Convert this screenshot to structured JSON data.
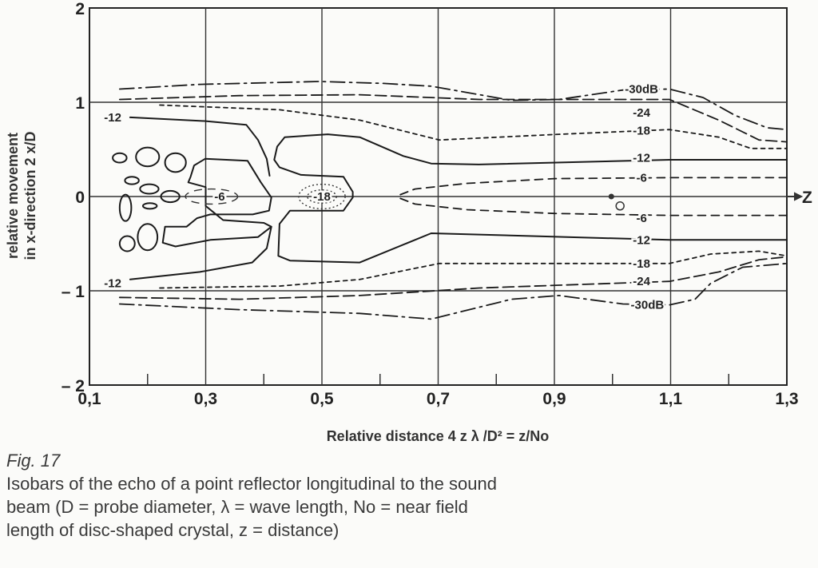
{
  "chart_data": {
    "type": "contour",
    "xlabel": "Relative distance 4 z λ /D² = z/No",
    "ylabel": [
      "relative movement",
      "in x-direction 2 x/D"
    ],
    "xlim": [
      0.1,
      1.3
    ],
    "ylim": [
      -2,
      2
    ],
    "x_ticks": [
      {
        "value": 0.1,
        "label": "0,1"
      },
      {
        "value": 0.3,
        "label": "0,3"
      },
      {
        "value": 0.5,
        "label": "0,5"
      },
      {
        "value": 0.7,
        "label": "0,7"
      },
      {
        "value": 0.9,
        "label": "0,9"
      },
      {
        "value": 1.1,
        "label": "1,1"
      },
      {
        "value": 1.3,
        "label": "1,3"
      }
    ],
    "x_minor_ticks": [
      0.2,
      0.4,
      0.6,
      0.8,
      1.0,
      1.2
    ],
    "y_ticks": [
      {
        "value": 2,
        "label": "2"
      },
      {
        "value": 1,
        "label": "1"
      },
      {
        "value": 0,
        "label": "0"
      },
      {
        "value": -1,
        "label": "– 1"
      },
      {
        "value": -2,
        "label": "– 2"
      }
    ],
    "grid": true,
    "axis_arrow_label": "Z",
    "contours": [
      {
        "level": -30,
        "style": "dashdot",
        "points": [
          [
            0.152,
            1.14
          ],
          [
            0.29,
            1.19
          ],
          [
            0.496,
            1.22
          ],
          [
            0.606,
            1.2
          ],
          [
            0.688,
            1.17
          ],
          [
            0.826,
            1.02
          ],
          [
            0.908,
            1.03
          ],
          [
            1.018,
            1.13
          ],
          [
            1.098,
            1.14
          ],
          [
            1.156,
            1.05
          ],
          [
            1.211,
            0.86
          ],
          [
            1.266,
            0.73
          ],
          [
            1.3,
            0.71
          ]
        ]
      },
      {
        "level": -30,
        "style": "dashdot",
        "points": [
          [
            0.152,
            -1.14
          ],
          [
            0.358,
            -1.2
          ],
          [
            0.565,
            -1.24
          ],
          [
            0.688,
            -1.3
          ],
          [
            0.826,
            -1.09
          ],
          [
            0.908,
            -1.05
          ],
          [
            1.018,
            -1.14
          ],
          [
            1.098,
            -1.15
          ],
          [
            1.142,
            -1.09
          ],
          [
            1.169,
            -0.92
          ],
          [
            1.224,
            -0.75
          ],
          [
            1.3,
            -0.71
          ]
        ]
      },
      {
        "level": -24,
        "style": "longdash",
        "points": [
          [
            0.152,
            1.03
          ],
          [
            0.358,
            1.07
          ],
          [
            0.565,
            1.08
          ],
          [
            0.771,
            1.03
          ],
          [
            1.098,
            1.03
          ],
          [
            1.183,
            0.81
          ],
          [
            1.252,
            0.6
          ],
          [
            1.3,
            0.58
          ]
        ]
      },
      {
        "level": -24,
        "style": "longdash",
        "points": [
          [
            0.152,
            -1.07
          ],
          [
            0.358,
            -1.09
          ],
          [
            0.565,
            -1.05
          ],
          [
            0.771,
            -0.97
          ],
          [
            1.098,
            -0.9
          ],
          [
            1.183,
            -0.8
          ],
          [
            1.252,
            -0.67
          ],
          [
            1.3,
            -0.64
          ]
        ]
      },
      {
        "level": -18,
        "style": "shortdash",
        "points": [
          [
            0.221,
            0.97
          ],
          [
            0.427,
            0.92
          ],
          [
            0.565,
            0.81
          ],
          [
            0.702,
            0.6
          ],
          [
            0.908,
            0.66
          ],
          [
            1.098,
            0.71
          ],
          [
            1.183,
            0.63
          ],
          [
            1.238,
            0.51
          ],
          [
            1.3,
            0.51
          ]
        ]
      },
      {
        "level": -18,
        "style": "shortdash",
        "points": [
          [
            0.221,
            -0.97
          ],
          [
            0.427,
            -0.95
          ],
          [
            0.565,
            -0.88
          ],
          [
            0.702,
            -0.71
          ],
          [
            0.908,
            -0.71
          ],
          [
            1.098,
            -0.71
          ],
          [
            1.169,
            -0.61
          ],
          [
            1.252,
            -0.58
          ],
          [
            1.3,
            -0.63
          ]
        ]
      },
      {
        "level": -12,
        "style": "solid",
        "points": [
          [
            0.17,
            0.84
          ],
          [
            0.3,
            0.8
          ],
          [
            0.37,
            0.76
          ],
          [
            0.39,
            0.6
          ],
          [
            0.405,
            0.4
          ],
          [
            0.41,
            0.22
          ]
        ]
      },
      {
        "level": -12,
        "style": "solid",
        "points": [
          [
            0.17,
            -0.88
          ],
          [
            0.29,
            -0.8
          ],
          [
            0.38,
            -0.7
          ],
          [
            0.405,
            -0.55
          ],
          [
            0.413,
            -0.32
          ]
        ]
      },
      {
        "level": -12,
        "style": "solid",
        "points": [
          [
            1.3,
            0.39
          ],
          [
            1.098,
            0.39
          ],
          [
            0.77,
            0.34
          ],
          [
            0.688,
            0.35
          ],
          [
            0.64,
            0.43
          ],
          [
            0.565,
            0.63
          ],
          [
            0.51,
            0.66
          ],
          [
            0.436,
            0.63
          ],
          [
            0.423,
            0.53
          ],
          [
            0.418,
            0.39
          ],
          [
            0.427,
            0.31
          ],
          [
            0.464,
            0.23
          ],
          [
            0.537,
            0.21
          ],
          [
            0.553,
            0.05
          ],
          [
            0.553,
            -0.01
          ],
          [
            0.537,
            -0.15
          ],
          [
            0.445,
            -0.15
          ],
          [
            0.427,
            -0.29
          ],
          [
            0.425,
            -0.63
          ],
          [
            0.445,
            -0.68
          ],
          [
            0.565,
            -0.7
          ],
          [
            0.688,
            -0.39
          ],
          [
            1.098,
            -0.46
          ],
          [
            1.3,
            -0.46
          ]
        ]
      },
      {
        "level": -12,
        "style": "solid",
        "closed": true,
        "points": [
          [
            0.274,
            0.21
          ],
          [
            0.28,
            0.33
          ],
          [
            0.299,
            0.4
          ],
          [
            0.372,
            0.38
          ],
          [
            0.395,
            0.15
          ],
          [
            0.413,
            -0.01
          ],
          [
            0.409,
            -0.15
          ],
          [
            0.381,
            -0.19
          ],
          [
            0.308,
            -0.19
          ],
          [
            0.285,
            -0.23
          ],
          [
            0.267,
            -0.32
          ],
          [
            0.23,
            -0.32
          ],
          [
            0.226,
            -0.49
          ],
          [
            0.248,
            -0.53
          ],
          [
            0.308,
            -0.46
          ],
          [
            0.39,
            -0.43
          ],
          [
            0.413,
            -0.32
          ],
          [
            0.4,
            -0.28
          ],
          [
            0.33,
            -0.25
          ],
          [
            0.3,
            -0.1
          ],
          [
            0.3,
            0.1
          ],
          [
            0.27,
            0.15
          ]
        ]
      },
      {
        "level": -6,
        "style": "meddash",
        "points": [
          [
            0.635,
            0.02
          ],
          [
            0.66,
            0.08
          ],
          [
            0.75,
            0.14
          ],
          [
            0.9,
            0.19
          ],
          [
            1.098,
            0.2
          ],
          [
            1.3,
            0.2
          ]
        ]
      },
      {
        "level": -6,
        "style": "meddash",
        "points": [
          [
            0.635,
            -0.02
          ],
          [
            0.66,
            -0.08
          ],
          [
            0.75,
            -0.14
          ],
          [
            0.9,
            -0.18
          ],
          [
            1.098,
            -0.2
          ],
          [
            1.3,
            -0.2
          ]
        ]
      }
    ],
    "closed_rings": [
      {
        "level": -6,
        "style": "meddash",
        "cx": 0.31,
        "cy": 0,
        "rx": 0.045,
        "ry": 0.08
      },
      {
        "level": -18,
        "style": "dotted",
        "cx": 0.5,
        "cy": 0,
        "rx": 0.04,
        "ry": 0.13
      },
      {
        "level": -18,
        "style": "dotted",
        "cx": 0.5,
        "cy": 0,
        "rx": 0.025,
        "ry": 0.07
      }
    ],
    "side_lobes": [
      {
        "cx": 0.152,
        "cy": 0.41,
        "rx": 0.012,
        "ry": 0.05
      },
      {
        "cx": 0.2,
        "cy": 0.42,
        "rx": 0.02,
        "ry": 0.1
      },
      {
        "cx": 0.248,
        "cy": 0.36,
        "rx": 0.018,
        "ry": 0.1
      },
      {
        "cx": 0.173,
        "cy": 0.17,
        "rx": 0.012,
        "ry": 0.04
      },
      {
        "cx": 0.203,
        "cy": 0.08,
        "rx": 0.016,
        "ry": 0.05
      },
      {
        "cx": 0.239,
        "cy": 0,
        "rx": 0.016,
        "ry": 0.06
      },
      {
        "cx": 0.204,
        "cy": -0.1,
        "rx": 0.012,
        "ry": 0.03
      },
      {
        "cx": 0.162,
        "cy": -0.12,
        "rx": 0.01,
        "ry": 0.14
      },
      {
        "cx": 0.2,
        "cy": -0.43,
        "rx": 0.017,
        "ry": 0.14
      },
      {
        "cx": 0.165,
        "cy": -0.5,
        "rx": 0.013,
        "ry": 0.08
      }
    ],
    "markers": [
      {
        "type": "dot",
        "x": 0.998,
        "y": 0
      },
      {
        "type": "circle",
        "x": 1.013,
        "y": -0.1
      }
    ],
    "contour_labels": [
      {
        "text": "-30dB",
        "x": 1.05,
        "y": 1.14
      },
      {
        "text": "-24",
        "x": 1.05,
        "y": 0.89
      },
      {
        "text": "-18",
        "x": 1.05,
        "y": 0.7
      },
      {
        "text": "-12",
        "x": 1.05,
        "y": 0.41
      },
      {
        "text": "-6",
        "x": 1.05,
        "y": 0.2
      },
      {
        "text": "-6",
        "x": 1.05,
        "y": -0.23
      },
      {
        "text": "-12",
        "x": 1.05,
        "y": -0.46
      },
      {
        "text": "-18",
        "x": 1.05,
        "y": -0.71
      },
      {
        "text": "-24",
        "x": 1.05,
        "y": -0.9
      },
      {
        "text": "-30dB",
        "x": 1.06,
        "y": -1.15
      },
      {
        "text": "-12",
        "x": 0.14,
        "y": 0.84
      },
      {
        "text": "-12",
        "x": 0.14,
        "y": -0.92
      },
      {
        "text": "-6",
        "x": 0.324,
        "y": 0
      },
      {
        "text": "-18",
        "x": 0.5,
        "y": 0
      }
    ]
  },
  "caption": {
    "figure": "Fig. 17",
    "lines": [
      "Isobars of the echo of a point reflector longitudinal to the sound",
      "beam (D = probe diameter, λ = wave length, No = near field",
      "length of disc-shaped crystal, z = distance)"
    ]
  }
}
